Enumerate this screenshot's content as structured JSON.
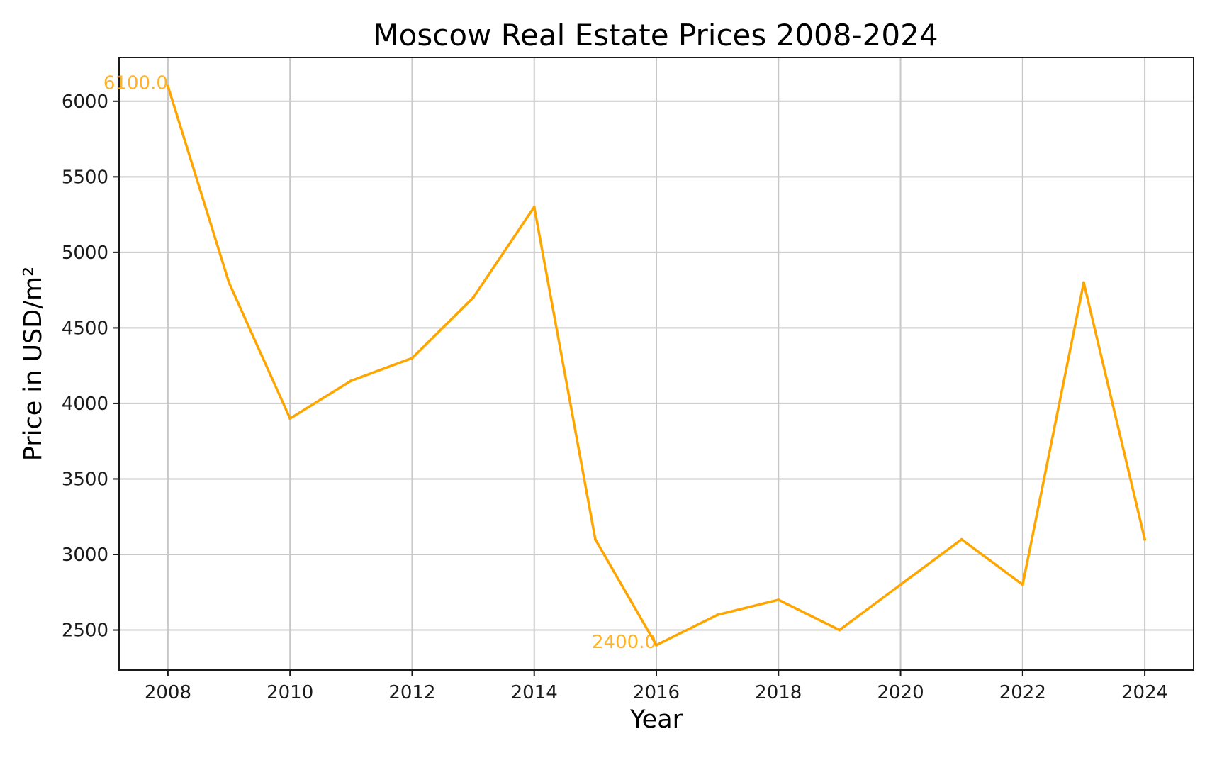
{
  "chart_data": {
    "type": "line",
    "title": "Moscow Real Estate Prices 2008-2024",
    "xlabel": "Year",
    "ylabel": "Price in USD/m²",
    "x": [
      2008,
      2009,
      2010,
      2011,
      2012,
      2013,
      2014,
      2015,
      2016,
      2017,
      2018,
      2019,
      2020,
      2021,
      2022,
      2023,
      2024
    ],
    "series": [
      {
        "values": [
          6100,
          4800,
          3900,
          4150,
          4300,
          4700,
          5300,
          3100,
          2400,
          2600,
          2700,
          2500,
          2800,
          3100,
          2800,
          4800,
          3100
        ],
        "color": "#FFA500"
      }
    ],
    "xlim": [
      2007.2,
      2024.8
    ],
    "ylim": [
      2235,
      6290
    ],
    "xticks": [
      2008,
      2010,
      2012,
      2014,
      2016,
      2018,
      2020,
      2022,
      2024
    ],
    "yticks": [
      2500,
      3000,
      3500,
      4000,
      4500,
      5000,
      5500,
      6000
    ],
    "grid": true,
    "annotations": [
      {
        "text": "6100.0",
        "x": 2008,
        "y": 6100
      },
      {
        "text": "2400.0",
        "x": 2016,
        "y": 2400
      }
    ]
  }
}
